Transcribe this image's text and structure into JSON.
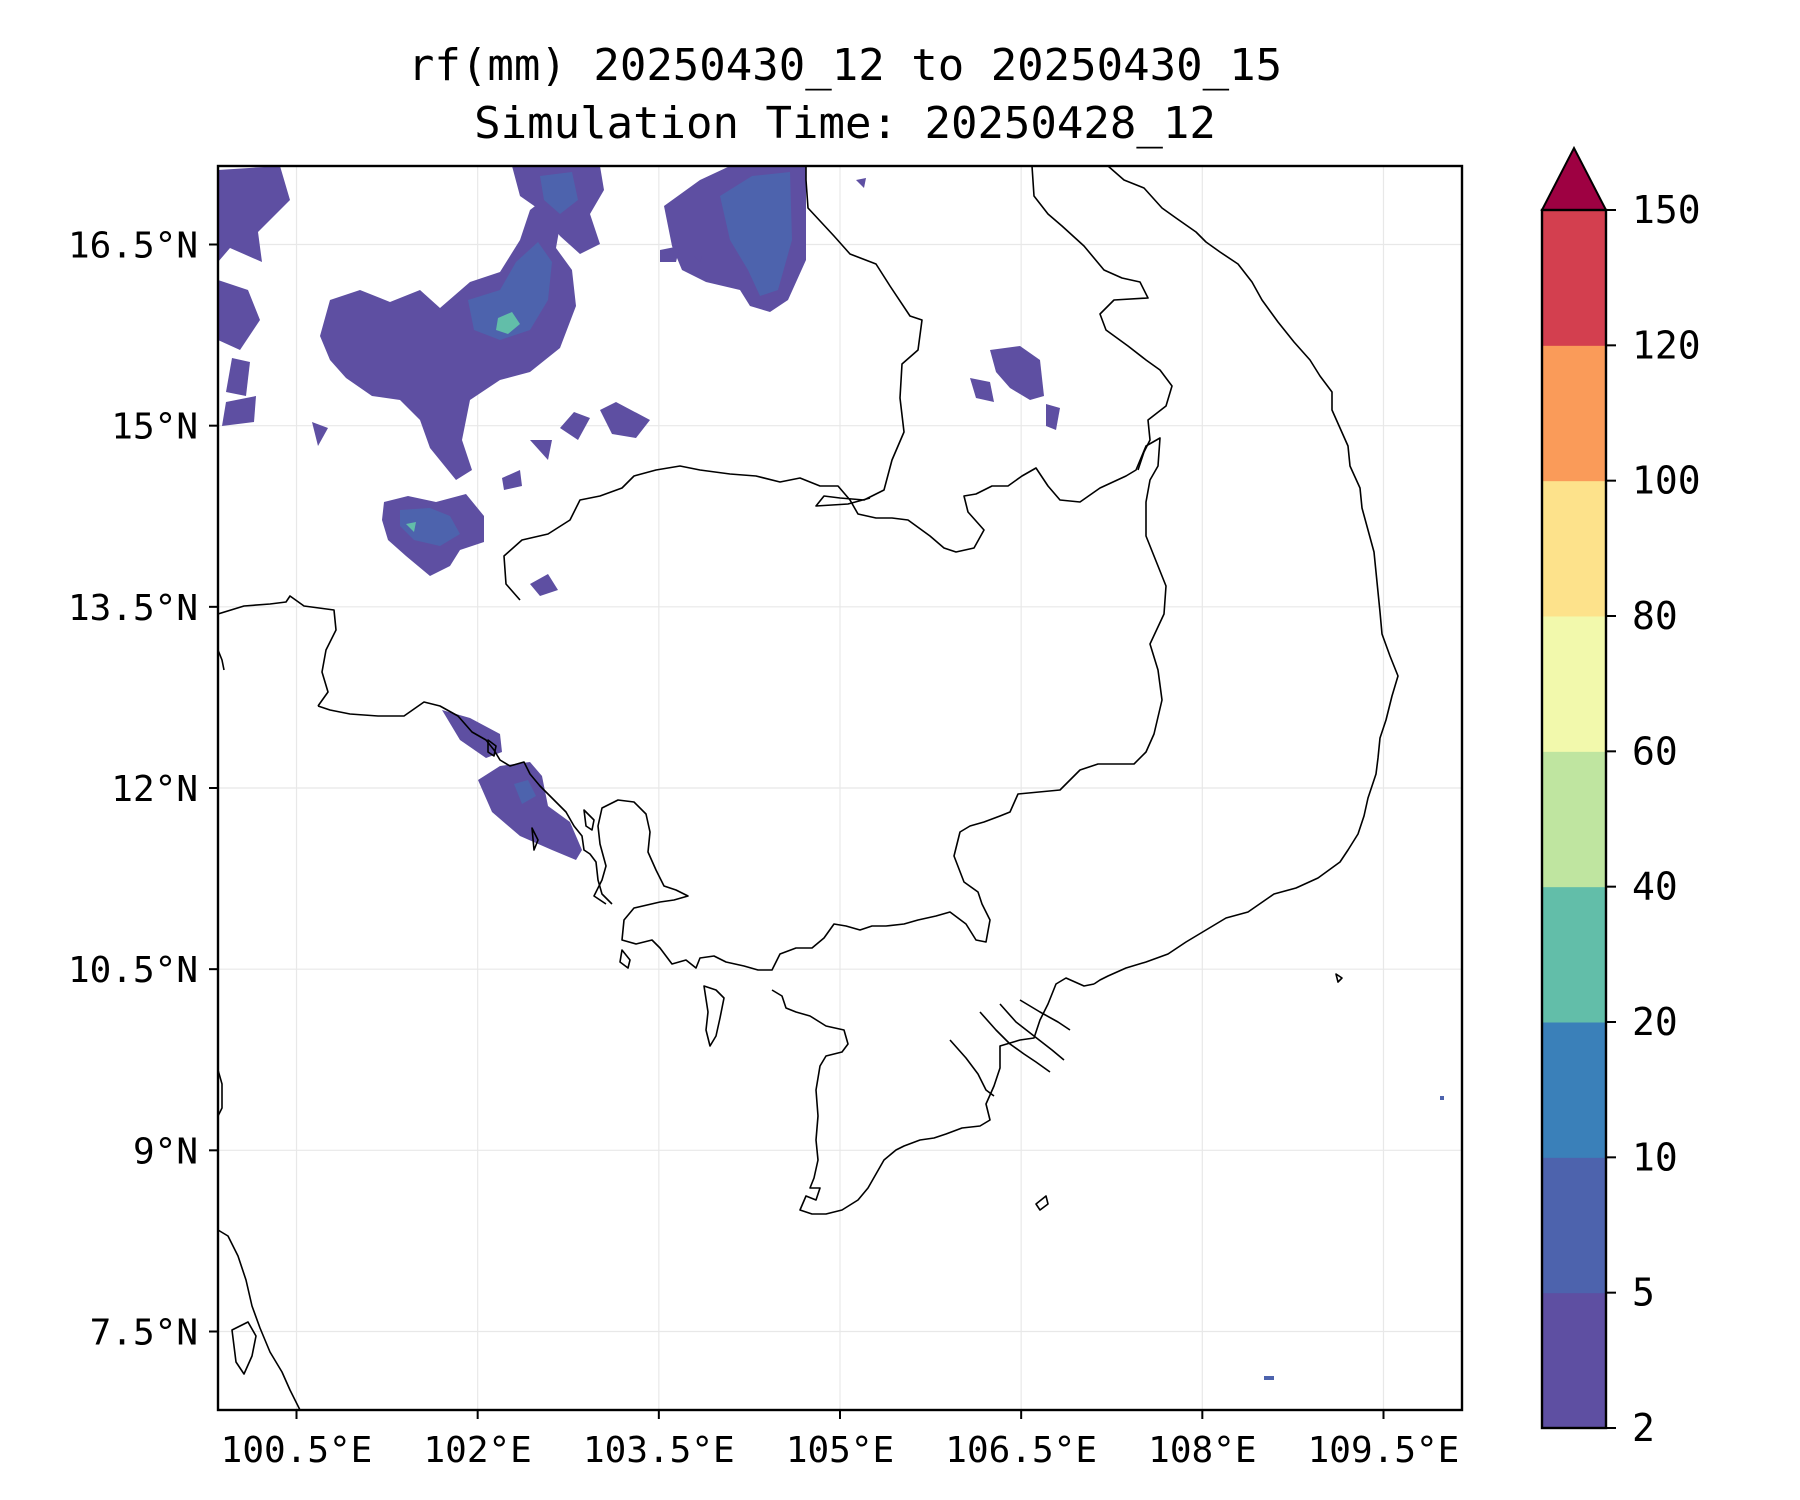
{
  "title": {
    "line1": "rf(mm) 20250430_12 to 20250430_15",
    "line2": "Simulation Time: 20250428_12"
  },
  "map_data": {
    "type": "filled-contour-map",
    "variable": "rf(mm)",
    "lon_range": [
      99.85,
      110.15
    ],
    "lat_range": [
      6.85,
      17.15
    ],
    "x_ticks": [
      "100.5°E",
      "102°E",
      "103.5°E",
      "105°E",
      "106.5°E",
      "108°E",
      "109.5°E"
    ],
    "x_tick_values": [
      100.5,
      102.0,
      103.5,
      105.0,
      106.5,
      108.0,
      109.5
    ],
    "y_ticks": [
      "16.5°N",
      "15°N",
      "13.5°N",
      "12°N",
      "10.5°N",
      "9°N",
      "7.5°N"
    ],
    "y_tick_values": [
      16.5,
      15.0,
      13.5,
      12.0,
      10.5,
      9.0,
      7.5
    ],
    "grid": true,
    "colorbar": {
      "levels": [
        2,
        5,
        10,
        20,
        40,
        60,
        80,
        100,
        120,
        150
      ],
      "labels": [
        "2",
        "5",
        "10",
        "20",
        "40",
        "60",
        "80",
        "100",
        "120",
        "150"
      ],
      "colors": [
        "#5e4fa2",
        "#4d63ad",
        "#3a80b9",
        "#62bea9",
        "#bfe5a0",
        "#f2f9ac",
        "#fde28b",
        "#fa9b59",
        "#d33f4f"
      ],
      "extend_color": "#9e0142",
      "extend": "max"
    }
  },
  "colors": {
    "coastline": "#000000",
    "grid": "#e8e8e8",
    "rain_light": "#5e4fa2",
    "rain_medium": "#4d63ad",
    "rain_heavy": "#3a80b9",
    "rain_peak": "#62bea9"
  }
}
